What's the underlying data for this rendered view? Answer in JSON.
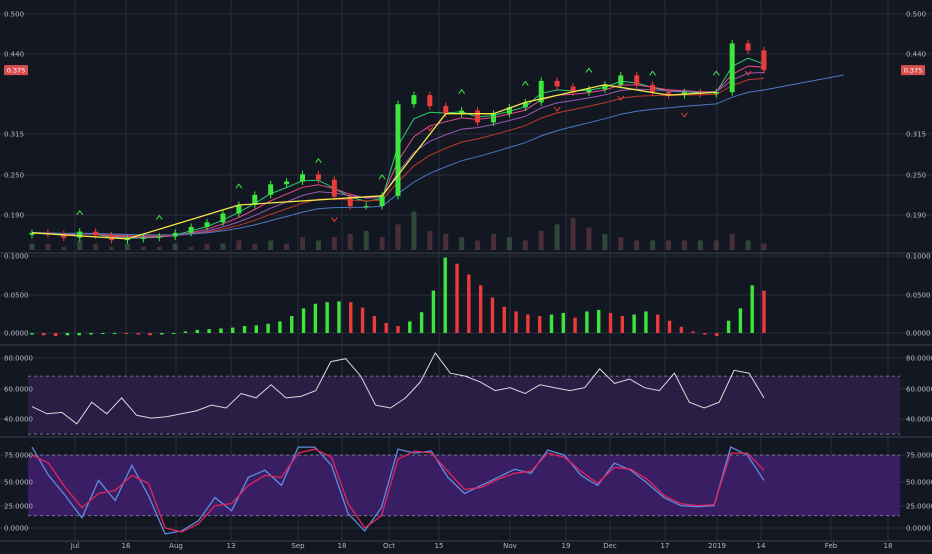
{
  "theme": {
    "background": "#131722",
    "grid": "#2a2e39",
    "axis_text": "#b2b5be",
    "separator": "#363a45",
    "up": "#3ce63c",
    "down": "#ec3b3b",
    "wave": "#f5e84a",
    "last_price_bg": "#d94f4f",
    "rsi_line": "#d9d9d9",
    "rsi_band": "#2c2048",
    "stoch_k": "#5d8de0",
    "stoch_d": "#e0245e",
    "stoch_band": "#3e1f6c"
  },
  "x_axis": {
    "labels": [
      "Jul",
      "16",
      "Aug",
      "13",
      "Sep",
      "18",
      "Oct",
      "15",
      "Nov",
      "19",
      "Dec",
      "17",
      "2019",
      "14",
      "Feb",
      "18"
    ]
  },
  "price_panel": {
    "y_ticks": [
      "0.500",
      "0.440",
      "0.315",
      "0.250",
      "0.190"
    ],
    "last_price_label": "0.375"
  },
  "macd_panel": {
    "y_ticks": [
      "0.1000",
      "0.0500",
      "0.0000"
    ]
  },
  "rsi_panel": {
    "y_ticks": [
      "80.0000",
      "60.0000",
      "40.0000"
    ]
  },
  "stoch_panel": {
    "y_ticks": [
      "75.0000",
      "50.0000",
      "25.0000",
      "0.0000"
    ]
  },
  "chart_data": {
    "type": "line",
    "panels": [
      {
        "name": "price",
        "scale": "log",
        "ylim": [
          0.147,
          0.5
        ],
        "series": [
          {
            "values": [
              0.163,
              0.162,
              0.159,
              0.164,
              0.161,
              0.157,
              0.158,
              0.159,
              0.16,
              0.163,
              0.168,
              0.172,
              0.18,
              0.188,
              0.198,
              0.209,
              0.212,
              0.22,
              0.214,
              0.196,
              0.187,
              0.187,
              0.197,
              0.315,
              0.33,
              0.312,
              0.3,
              0.305,
              0.287,
              0.3,
              0.31,
              0.318,
              0.355,
              0.345,
              0.335,
              0.34,
              0.348,
              0.365,
              0.348,
              0.335,
              0.33,
              0.335,
              0.332,
              0.335,
              0.43,
              0.415,
              0.375
            ]
          }
        ]
      },
      {
        "name": "macd_histogram",
        "ylim": [
          -0.004,
          0.1
        ],
        "series": [
          {
            "values": [
              -0.002,
              -0.003,
              -0.004,
              -0.003,
              -0.003,
              -0.002,
              -0.001,
              0.0,
              -0.001,
              -0.002,
              -0.003,
              -0.002,
              0.0,
              0.002,
              0.004,
              0.005,
              0.006,
              0.007,
              0.009,
              0.01,
              0.012,
              0.015,
              0.022,
              0.032,
              0.038,
              0.04,
              0.041,
              0.04,
              0.033,
              0.022,
              0.013,
              0.009,
              0.015,
              0.027,
              0.055,
              0.098,
              0.09,
              0.076,
              0.062,
              0.046,
              0.034,
              0.028,
              0.024,
              0.022,
              0.024,
              0.026,
              0.02,
              0.028,
              0.03,
              0.026,
              0.022,
              0.024,
              0.028,
              0.024,
              0.016,
              0.008,
              0.002,
              -0.002,
              -0.004,
              0.016,
              0.032,
              0.062,
              0.055
            ]
          }
        ]
      },
      {
        "name": "rsi",
        "ylim": [
          28,
          88
        ],
        "bands": [
          30,
          70
        ],
        "series": [
          {
            "values": [
              49,
              44,
              45,
              37,
              52,
              44,
              55,
              43,
              41,
              42,
              44,
              46,
              50,
              48,
              58,
              55,
              64,
              55,
              56,
              60,
              80,
              82,
              70,
              50,
              48,
              55,
              66,
              86,
              72,
              70,
              66,
              60,
              62,
              58,
              64,
              62,
              60,
              62,
              75,
              65,
              68,
              62,
              60,
              72,
              52,
              48,
              52,
              74,
              72,
              55
            ]
          }
        ]
      },
      {
        "name": "stochastic",
        "ylim": [
          -5,
          95
        ],
        "bands": [
          20,
          80
        ],
        "series": [
          {
            "name": "%K",
            "values": [
              88,
              60,
              40,
              18,
              55,
              35,
              70,
              40,
              2,
              5,
              15,
              38,
              25,
              58,
              65,
              50,
              88,
              88,
              70,
              22,
              5,
              28,
              86,
              82,
              84,
              58,
              42,
              50,
              58,
              66,
              62,
              85,
              80,
              60,
              50,
              72,
              65,
              52,
              38,
              30,
              29,
              30,
              88,
              80,
              55
            ]
          },
          {
            "name": "%D",
            "values": [
              80,
              72,
              48,
              28,
              42,
              45,
              60,
              52,
              8,
              4,
              12,
              30,
              32,
              50,
              60,
              58,
              82,
              86,
              78,
              32,
              8,
              20,
              76,
              84,
              82,
              64,
              46,
              48,
              56,
              62,
              64,
              82,
              78,
              64,
              52,
              68,
              66,
              56,
              40,
              32,
              30,
              31,
              82,
              82,
              65
            ]
          }
        ]
      }
    ]
  }
}
